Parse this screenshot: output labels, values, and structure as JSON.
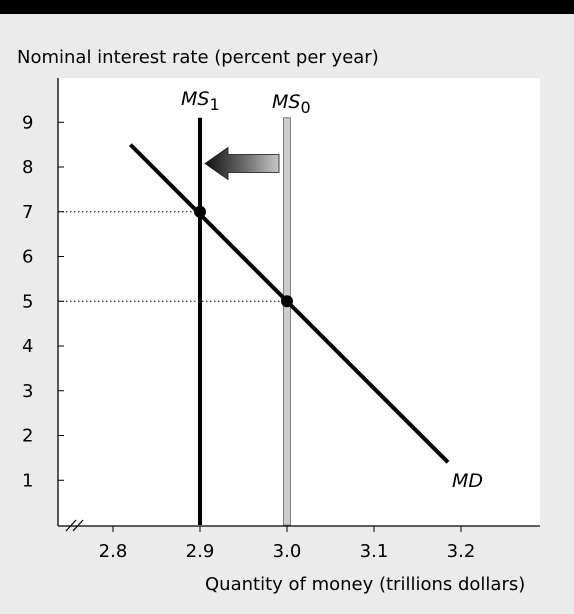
{
  "chart_data": {
    "type": "line",
    "title": "",
    "ylabel": "Nominal interest rate (percent per year)",
    "xlabel": "Quantity of money (trillions dollars)",
    "xlim": [
      2.75,
      3.28
    ],
    "ylim": [
      0,
      9.4
    ],
    "x_ticks": [
      2.8,
      2.9,
      3.0,
      3.1,
      3.2
    ],
    "x_tick_labels": [
      "2.8",
      "2.9",
      "3.0",
      "3.1",
      "3.2"
    ],
    "y_ticks": [
      1,
      2,
      3,
      4,
      5,
      6,
      7,
      8,
      9
    ],
    "y_tick_labels": [
      "1",
      "2",
      "3",
      "4",
      "5",
      "6",
      "7",
      "8",
      "9"
    ],
    "axis_break_marker": true,
    "series": [
      {
        "name": "MD",
        "label_base": "MD",
        "label_sub": "",
        "kind": "downward-sloping",
        "color": "#000000",
        "points": [
          [
            2.82,
            8.5
          ],
          [
            3.185,
            1.4
          ]
        ]
      },
      {
        "name": "MS0",
        "label_base": "MS",
        "label_sub": "0",
        "kind": "vertical",
        "color": "#cccccc",
        "x": 3.0,
        "y_range": [
          0,
          9.1
        ]
      },
      {
        "name": "MS1",
        "label_base": "MS",
        "label_sub": "1",
        "kind": "vertical",
        "color": "#000000",
        "x": 2.9,
        "y_range": [
          0,
          9.1
        ]
      }
    ],
    "equilibria": [
      {
        "x": 2.9,
        "y": 7
      },
      {
        "x": 3.0,
        "y": 5
      }
    ],
    "shift_arrow": {
      "direction": "left",
      "from": "MS0",
      "to": "MS1",
      "at_y": 8.1
    }
  }
}
